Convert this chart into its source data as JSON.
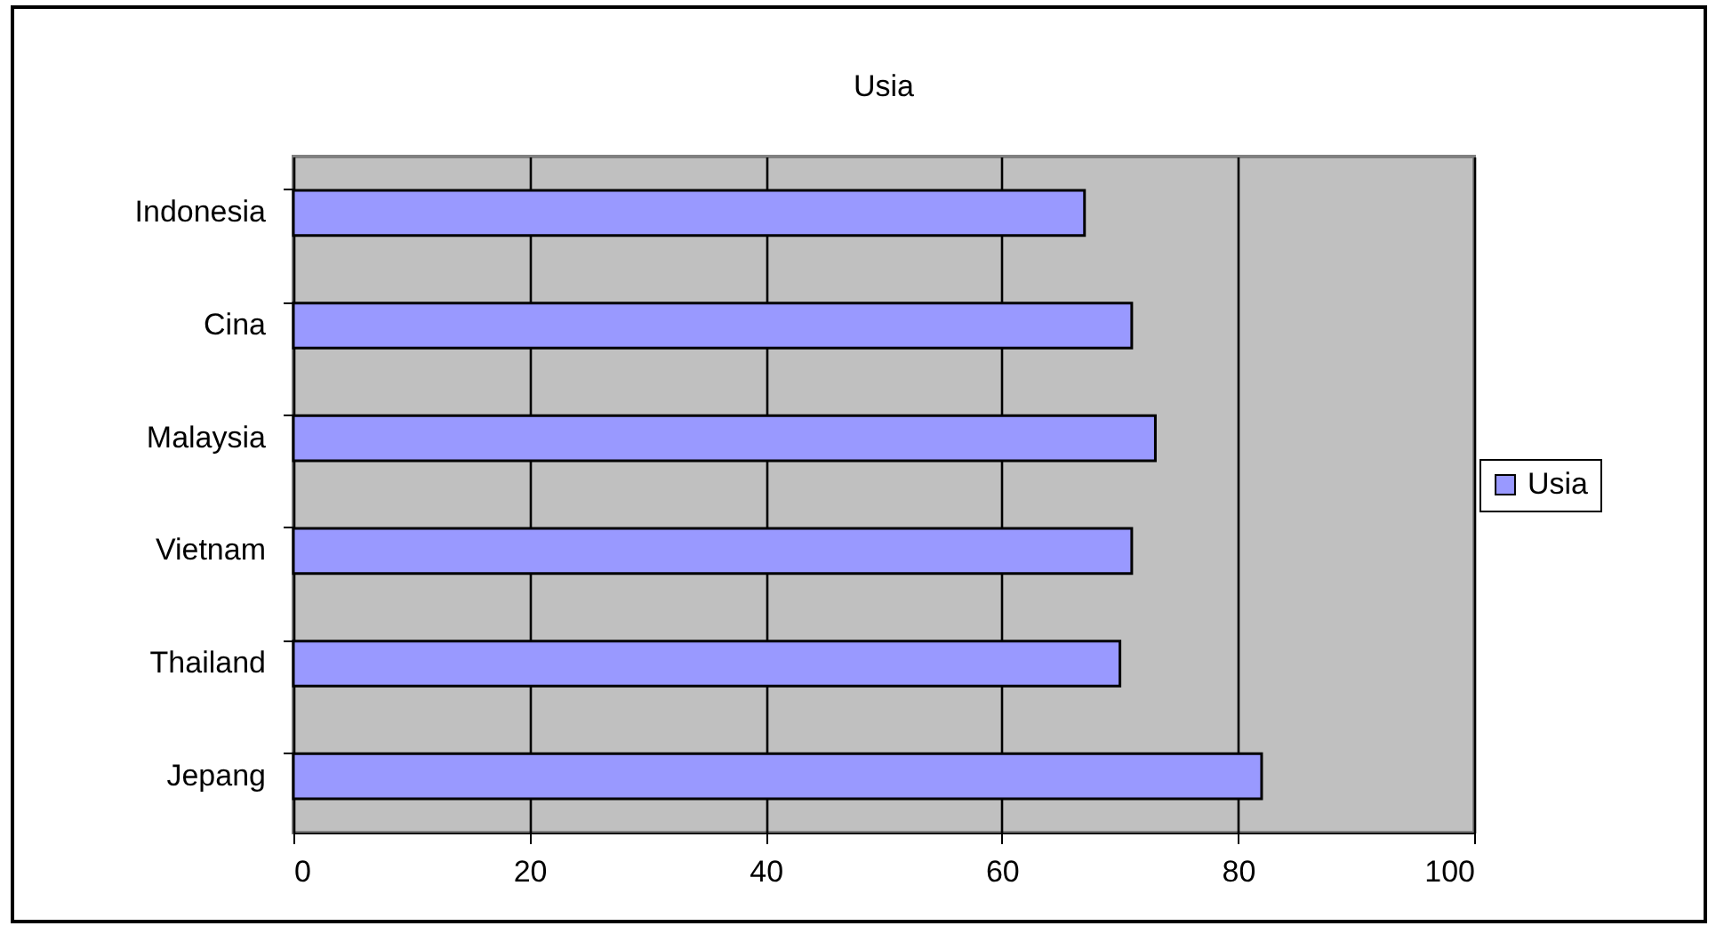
{
  "chart_data": {
    "type": "bar",
    "orientation": "horizontal",
    "title": "Usia",
    "categories": [
      "Indonesia",
      "Cina",
      "Malaysia",
      "Vietnam",
      "Thailand",
      "Jepang"
    ],
    "series": [
      {
        "name": "Usia",
        "color": "#9999ff",
        "values": [
          67,
          71,
          73,
          71,
          70,
          82
        ]
      }
    ],
    "xlim": [
      0,
      100
    ],
    "xticks": [
      0,
      20,
      40,
      60,
      80,
      100
    ],
    "grid": "x",
    "legend": "right"
  }
}
